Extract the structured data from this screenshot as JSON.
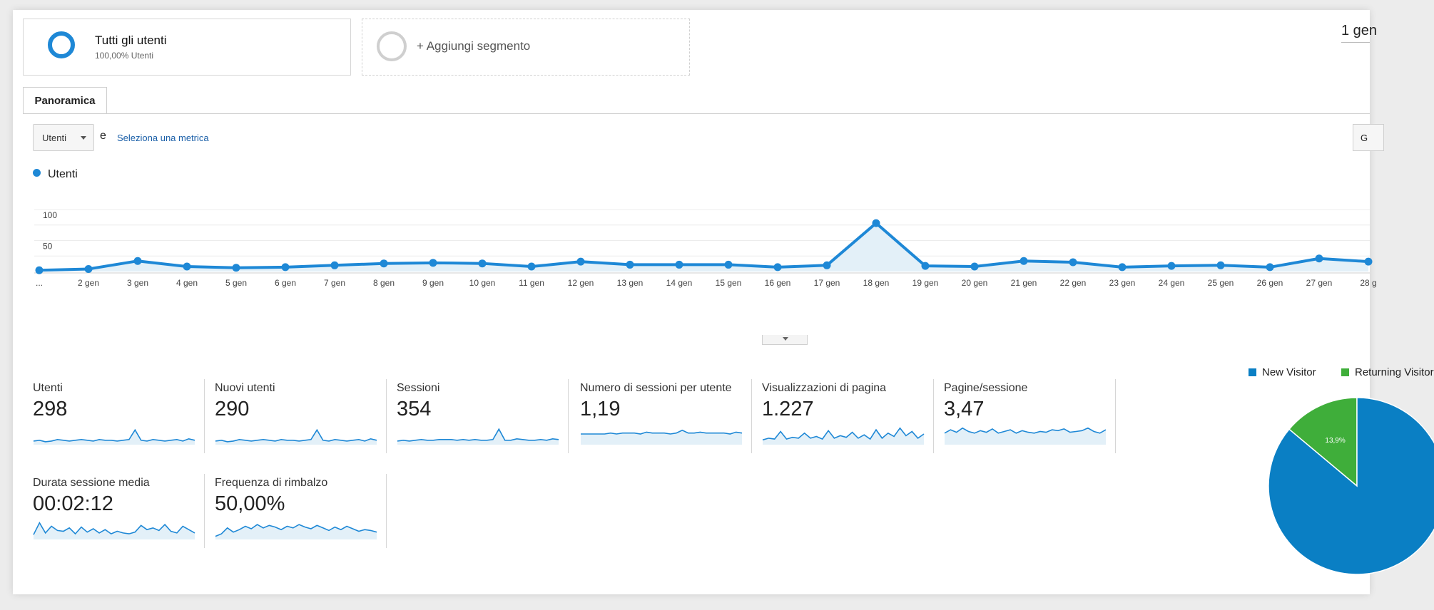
{
  "segments": {
    "active": {
      "title": "Tutti gli utenti",
      "subtitle": "100,00% Utenti"
    },
    "add": {
      "label": "+ Aggiungi segmento"
    }
  },
  "date_range": "1 gen",
  "tabs": [
    {
      "label": "Panoramica"
    }
  ],
  "metric_picker": {
    "selected": "Utenti",
    "conjunction": "e",
    "secondary_link": "Seleziona una metrica",
    "right_button": "G"
  },
  "legend": {
    "series": "Utenti"
  },
  "colors": {
    "series": "#1e88d6",
    "fill": "#e3f0f8",
    "new_visitor": "#0a7fc4",
    "returning": "#3fae3a"
  },
  "chart_data": {
    "type": "area",
    "series": [
      {
        "name": "Utenti",
        "values": [
          2,
          4,
          17,
          8,
          6,
          7,
          10,
          13,
          14,
          13,
          8,
          16,
          11,
          11,
          11,
          7,
          10,
          78,
          9,
          8,
          17,
          15,
          7,
          9,
          10,
          7,
          21,
          16
        ]
      }
    ],
    "x": [
      "...",
      "2 gen",
      "3 gen",
      "4 gen",
      "5 gen",
      "6 gen",
      "7 gen",
      "8 gen",
      "9 gen",
      "10 gen",
      "11 gen",
      "12 gen",
      "13 gen",
      "14 gen",
      "15 gen",
      "16 gen",
      "17 gen",
      "18 gen",
      "19 gen",
      "20 gen",
      "21 gen",
      "22 gen",
      "23 gen",
      "24 gen",
      "25 gen",
      "26 gen",
      "27 gen",
      "28 g"
    ],
    "y_ticks": [
      "100",
      "50"
    ],
    "ylim": [
      0,
      100
    ],
    "grid": true
  },
  "metrics": [
    {
      "label": "Utenti",
      "value": "298",
      "spark": [
        3,
        4,
        2,
        3,
        5,
        4,
        3,
        4,
        5,
        4,
        3,
        5,
        4,
        4,
        3,
        4,
        5,
        18,
        4,
        3,
        5,
        4,
        3,
        4,
        5,
        3,
        6,
        4
      ],
      "spark_range": [
        0,
        25
      ]
    },
    {
      "label": "Nuovi utenti",
      "value": "290",
      "spark": [
        3,
        4,
        2,
        3,
        5,
        4,
        3,
        4,
        5,
        4,
        3,
        5,
        4,
        4,
        3,
        4,
        5,
        18,
        4,
        3,
        5,
        4,
        3,
        4,
        5,
        3,
        6,
        4
      ],
      "spark_range": [
        0,
        25
      ]
    },
    {
      "label": "Sessioni",
      "value": "354",
      "spark": [
        3,
        4,
        3,
        4,
        5,
        4,
        4,
        5,
        5,
        5,
        4,
        5,
        4,
        5,
        4,
        4,
        5,
        19,
        4,
        4,
        6,
        5,
        4,
        4,
        5,
        4,
        6,
        5
      ],
      "spark_range": [
        0,
        25
      ]
    },
    {
      "label": "Numero di sessioni per utente",
      "value": "1,19",
      "spark": [
        10,
        10,
        10,
        10,
        10,
        11,
        10,
        11,
        11,
        11,
        10,
        12,
        11,
        11,
        11,
        10,
        11,
        14,
        11,
        11,
        12,
        11,
        11,
        11,
        11,
        10,
        12,
        11
      ],
      "spark_range": [
        0,
        20
      ]
    },
    {
      "label": "Visualizzazioni di pagina",
      "value": "1.227",
      "spark": [
        4,
        6,
        5,
        14,
        5,
        7,
        6,
        12,
        6,
        8,
        5,
        15,
        6,
        9,
        7,
        13,
        6,
        10,
        5,
        16,
        6,
        12,
        8,
        18,
        9,
        14,
        6,
        11
      ],
      "spark_range": [
        0,
        22
      ]
    },
    {
      "label": "Pagine/sessione",
      "value": "3,47",
      "spark": [
        12,
        16,
        13,
        18,
        14,
        12,
        15,
        13,
        17,
        12,
        14,
        16,
        12,
        15,
        13,
        12,
        14,
        13,
        16,
        15,
        17,
        13,
        14,
        15,
        18,
        14,
        12,
        16
      ],
      "spark_range": [
        0,
        22
      ]
    },
    {
      "label": "Durata sessione media",
      "value": "00:02:12",
      "spark": [
        4,
        18,
        6,
        14,
        9,
        8,
        12,
        5,
        13,
        7,
        11,
        6,
        10,
        5,
        8,
        6,
        5,
        7,
        15,
        10,
        12,
        9,
        16,
        8,
        6,
        14,
        10,
        6
      ],
      "spark_range": [
        0,
        22
      ]
    },
    {
      "label": "Frequenza di rimbalzo",
      "value": "50,00%",
      "spark": [
        2,
        5,
        12,
        7,
        10,
        14,
        11,
        16,
        12,
        15,
        13,
        10,
        14,
        12,
        16,
        13,
        11,
        15,
        12,
        9,
        13,
        10,
        14,
        11,
        8,
        10,
        9,
        7
      ],
      "spark_range": [
        0,
        22
      ]
    }
  ],
  "pie": {
    "legend": [
      {
        "name": "New Visitor"
      },
      {
        "name": "Returning Visitor"
      }
    ],
    "slices": [
      {
        "name": "New Visitor",
        "value": 86.1
      },
      {
        "name": "Returning Visitor",
        "value": 13.9,
        "label": "13,9%"
      }
    ]
  }
}
